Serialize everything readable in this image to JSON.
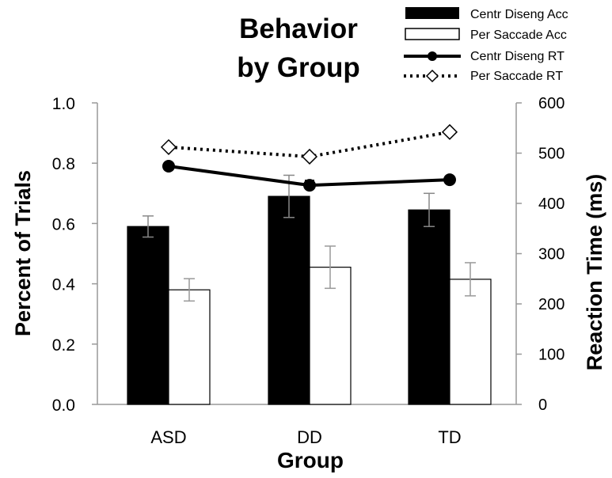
{
  "chart_data": {
    "type": "bar",
    "title_lines": [
      "Behavior",
      "by Group"
    ],
    "xlabel": "Group",
    "ylabel_left": "Percent of Trials",
    "ylabel_right": "Reaction Time (ms)",
    "categories": [
      "ASD",
      "DD",
      "TD"
    ],
    "y_left": {
      "min": 0.0,
      "max": 1.0,
      "ticks": [
        "0.0",
        "0.2",
        "0.4",
        "0.6",
        "0.8",
        "1.0"
      ]
    },
    "y_right": {
      "min": 0,
      "max": 600,
      "ticks": [
        "0",
        "100",
        "200",
        "300",
        "400",
        "500",
        "600"
      ]
    },
    "bar_series": [
      {
        "name": "Centr Diseng Acc",
        "color": "#000000",
        "values": [
          0.59,
          0.69,
          0.645
        ],
        "errors": [
          0.035,
          0.07,
          0.055
        ]
      },
      {
        "name": "Per Saccade Acc",
        "color": "#ffffff",
        "values": [
          0.38,
          0.455,
          0.415
        ],
        "errors": [
          0.037,
          0.07,
          0.055
        ]
      }
    ],
    "line_series": [
      {
        "name": "Centr Diseng RT",
        "style": "solid",
        "marker": "circle",
        "values": [
          474,
          436,
          447
        ],
        "errors": [
          0,
          10,
          0
        ]
      },
      {
        "name": "Per Saccade RT",
        "style": "dotted",
        "marker": "diamond",
        "values": [
          512,
          493,
          542
        ],
        "errors": [
          0,
          0,
          0
        ]
      }
    ],
    "legend_position": "top-right",
    "grid": false
  }
}
